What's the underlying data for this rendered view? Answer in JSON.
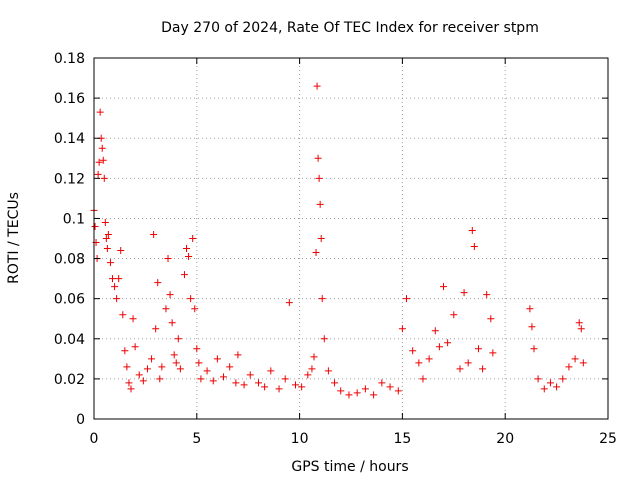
{
  "chart_data": {
    "type": "scatter",
    "title": "Day 270 of 2024, Rate Of TEC Index for receiver stpm",
    "xlabel": "GPS time / hours",
    "ylabel": "ROTI / TECUs",
    "xlim": [
      0,
      25
    ],
    "ylim": [
      0,
      0.18
    ],
    "x_ticks": [
      0,
      5,
      10,
      15,
      20,
      25
    ],
    "x_tick_labels": [
      "0",
      "5",
      "10",
      "15",
      "20",
      "25"
    ],
    "y_ticks": [
      0,
      0.02,
      0.04,
      0.06,
      0.08,
      0.1,
      0.12,
      0.14,
      0.16,
      0.18
    ],
    "y_tick_labels": [
      "0",
      "0.02",
      "0.04",
      "0.06",
      "0.08",
      "0.1",
      "0.12",
      "0.14",
      "0.16",
      "0.18"
    ],
    "grid": true,
    "marker": "+",
    "color": "#ee0000",
    "series": [
      {
        "name": "ROTI",
        "x": [
          0.0,
          0.05,
          0.1,
          0.15,
          0.2,
          0.25,
          0.3,
          0.35,
          0.4,
          0.45,
          0.5,
          0.55,
          0.6,
          0.65,
          0.7,
          0.8,
          0.9,
          1.0,
          1.1,
          1.2,
          1.3,
          1.4,
          1.5,
          1.6,
          1.7,
          1.8,
          1.9,
          2.0,
          2.2,
          2.4,
          2.6,
          2.8,
          2.9,
          3.0,
          3.1,
          3.2,
          3.3,
          3.5,
          3.6,
          3.7,
          3.8,
          3.9,
          4.0,
          4.1,
          4.2,
          4.4,
          4.5,
          4.6,
          4.7,
          4.8,
          4.9,
          5.0,
          5.1,
          5.2,
          5.5,
          5.8,
          6.0,
          6.3,
          6.6,
          6.9,
          7.0,
          7.3,
          7.6,
          8.0,
          8.3,
          8.6,
          9.0,
          9.3,
          9.5,
          9.8,
          10.1,
          10.4,
          10.6,
          10.7,
          10.8,
          10.85,
          10.9,
          10.95,
          11.0,
          11.05,
          11.1,
          11.2,
          11.4,
          11.7,
          12.0,
          12.4,
          12.8,
          13.2,
          13.6,
          14.0,
          14.4,
          14.8,
          15.0,
          15.2,
          15.5,
          15.8,
          16.0,
          16.3,
          16.6,
          16.8,
          17.0,
          17.2,
          17.5,
          17.8,
          18.0,
          18.2,
          18.4,
          18.5,
          18.7,
          18.9,
          19.1,
          19.3,
          19.4,
          21.2,
          21.3,
          21.4,
          21.6,
          21.9,
          22.2,
          22.5,
          22.8,
          23.1,
          23.4,
          23.6,
          23.7,
          23.8
        ],
        "y": [
          0.104,
          0.096,
          0.088,
          0.08,
          0.122,
          0.128,
          0.153,
          0.14,
          0.135,
          0.129,
          0.12,
          0.098,
          0.09,
          0.085,
          0.092,
          0.078,
          0.07,
          0.066,
          0.06,
          0.07,
          0.084,
          0.052,
          0.034,
          0.026,
          0.018,
          0.015,
          0.05,
          0.036,
          0.022,
          0.019,
          0.025,
          0.03,
          0.092,
          0.045,
          0.068,
          0.02,
          0.026,
          0.055,
          0.08,
          0.062,
          0.048,
          0.032,
          0.028,
          0.04,
          0.025,
          0.072,
          0.085,
          0.081,
          0.06,
          0.09,
          0.055,
          0.035,
          0.028,
          0.02,
          0.024,
          0.019,
          0.03,
          0.021,
          0.026,
          0.018,
          0.032,
          0.017,
          0.022,
          0.018,
          0.016,
          0.024,
          0.015,
          0.02,
          0.058,
          0.017,
          0.016,
          0.022,
          0.025,
          0.031,
          0.083,
          0.166,
          0.13,
          0.12,
          0.107,
          0.09,
          0.06,
          0.04,
          0.024,
          0.018,
          0.014,
          0.012,
          0.013,
          0.015,
          0.012,
          0.018,
          0.016,
          0.014,
          0.045,
          0.06,
          0.034,
          0.028,
          0.02,
          0.03,
          0.044,
          0.036,
          0.066,
          0.038,
          0.052,
          0.025,
          0.063,
          0.028,
          0.094,
          0.086,
          0.035,
          0.025,
          0.062,
          0.05,
          0.033,
          0.055,
          0.046,
          0.035,
          0.02,
          0.015,
          0.018,
          0.016,
          0.02,
          0.026,
          0.03,
          0.048,
          0.045,
          0.028
        ]
      }
    ]
  }
}
